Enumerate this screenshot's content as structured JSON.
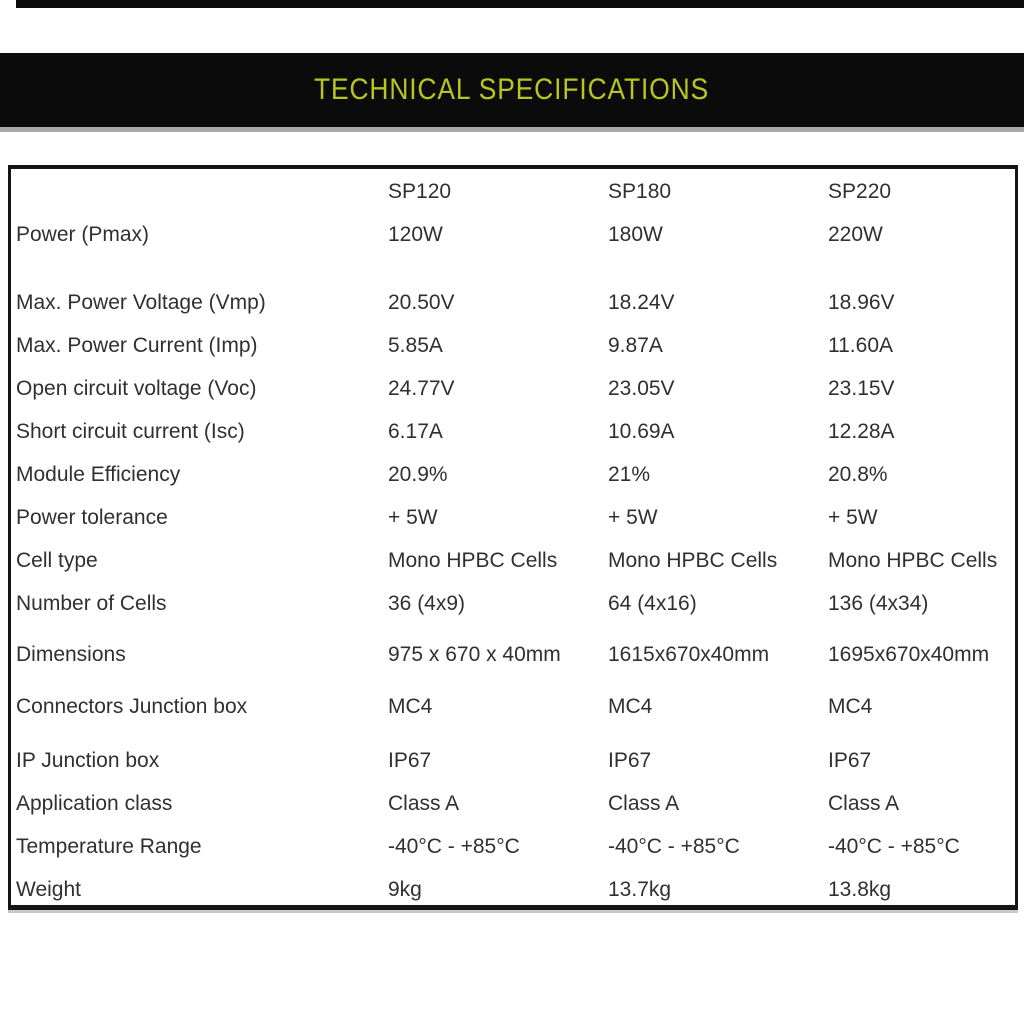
{
  "colors": {
    "accent": "#b9c521",
    "banner_bg": "#0b0b0b",
    "top_bar": "#0b0b0b",
    "table_border": "#151515",
    "text": "#303030"
  },
  "banner": {
    "title": "TECHNICAL SPECIFICATIONS"
  },
  "table": {
    "columns": [
      "SP120",
      "SP180",
      "SP220"
    ],
    "rows": [
      {
        "label": "Power (Pmax)",
        "values": [
          "120W",
          "180W",
          "220W"
        ]
      },
      {
        "label": "Max. Power Voltage (Vmp)",
        "values": [
          "20.50V",
          "18.24V",
          "18.96V"
        ]
      },
      {
        "label": "Max. Power Current (Imp)",
        "values": [
          "5.85A",
          "9.87A",
          "11.60A"
        ]
      },
      {
        "label": "Open circuit voltage (Voc)",
        "values": [
          "24.77V",
          "23.05V",
          "23.15V"
        ]
      },
      {
        "label": "Short circuit current (Isc)",
        "values": [
          "6.17A",
          "10.69A",
          "12.28A"
        ]
      },
      {
        "label": "Module Efficiency",
        "values": [
          "20.9%",
          "21%",
          "20.8%"
        ]
      },
      {
        "label": "Power tolerance",
        "values": [
          "+ 5W",
          "+ 5W",
          "+ 5W"
        ]
      },
      {
        "label": "Cell type",
        "values": [
          "Mono HPBC Cells",
          "Mono HPBC Cells",
          "Mono HPBC Cells"
        ]
      },
      {
        "label": "Number of Cells",
        "values": [
          "36 (4x9)",
          "64 (4x16)",
          "136 (4x34)"
        ]
      },
      {
        "label": "Dimensions",
        "values": [
          "975 x 670 x 40mm",
          "1615x670x40mm",
          "1695x670x40mm"
        ]
      },
      {
        "label": "Connectors Junction box",
        "values": [
          "MC4",
          "MC4",
          "MC4"
        ]
      },
      {
        "label": "IP Junction box",
        "values": [
          "IP67",
          "IP67",
          "IP67"
        ]
      },
      {
        "label": "Application class",
        "values": [
          "Class A",
          "Class A",
          "Class A"
        ]
      },
      {
        "label": "Temperature Range",
        "values": [
          "-40°C - +85°C",
          "-40°C - +85°C",
          "-40°C - +85°C"
        ]
      },
      {
        "label": "Weight",
        "values": [
          "9kg",
          "13.7kg",
          "13.8kg"
        ]
      }
    ]
  }
}
